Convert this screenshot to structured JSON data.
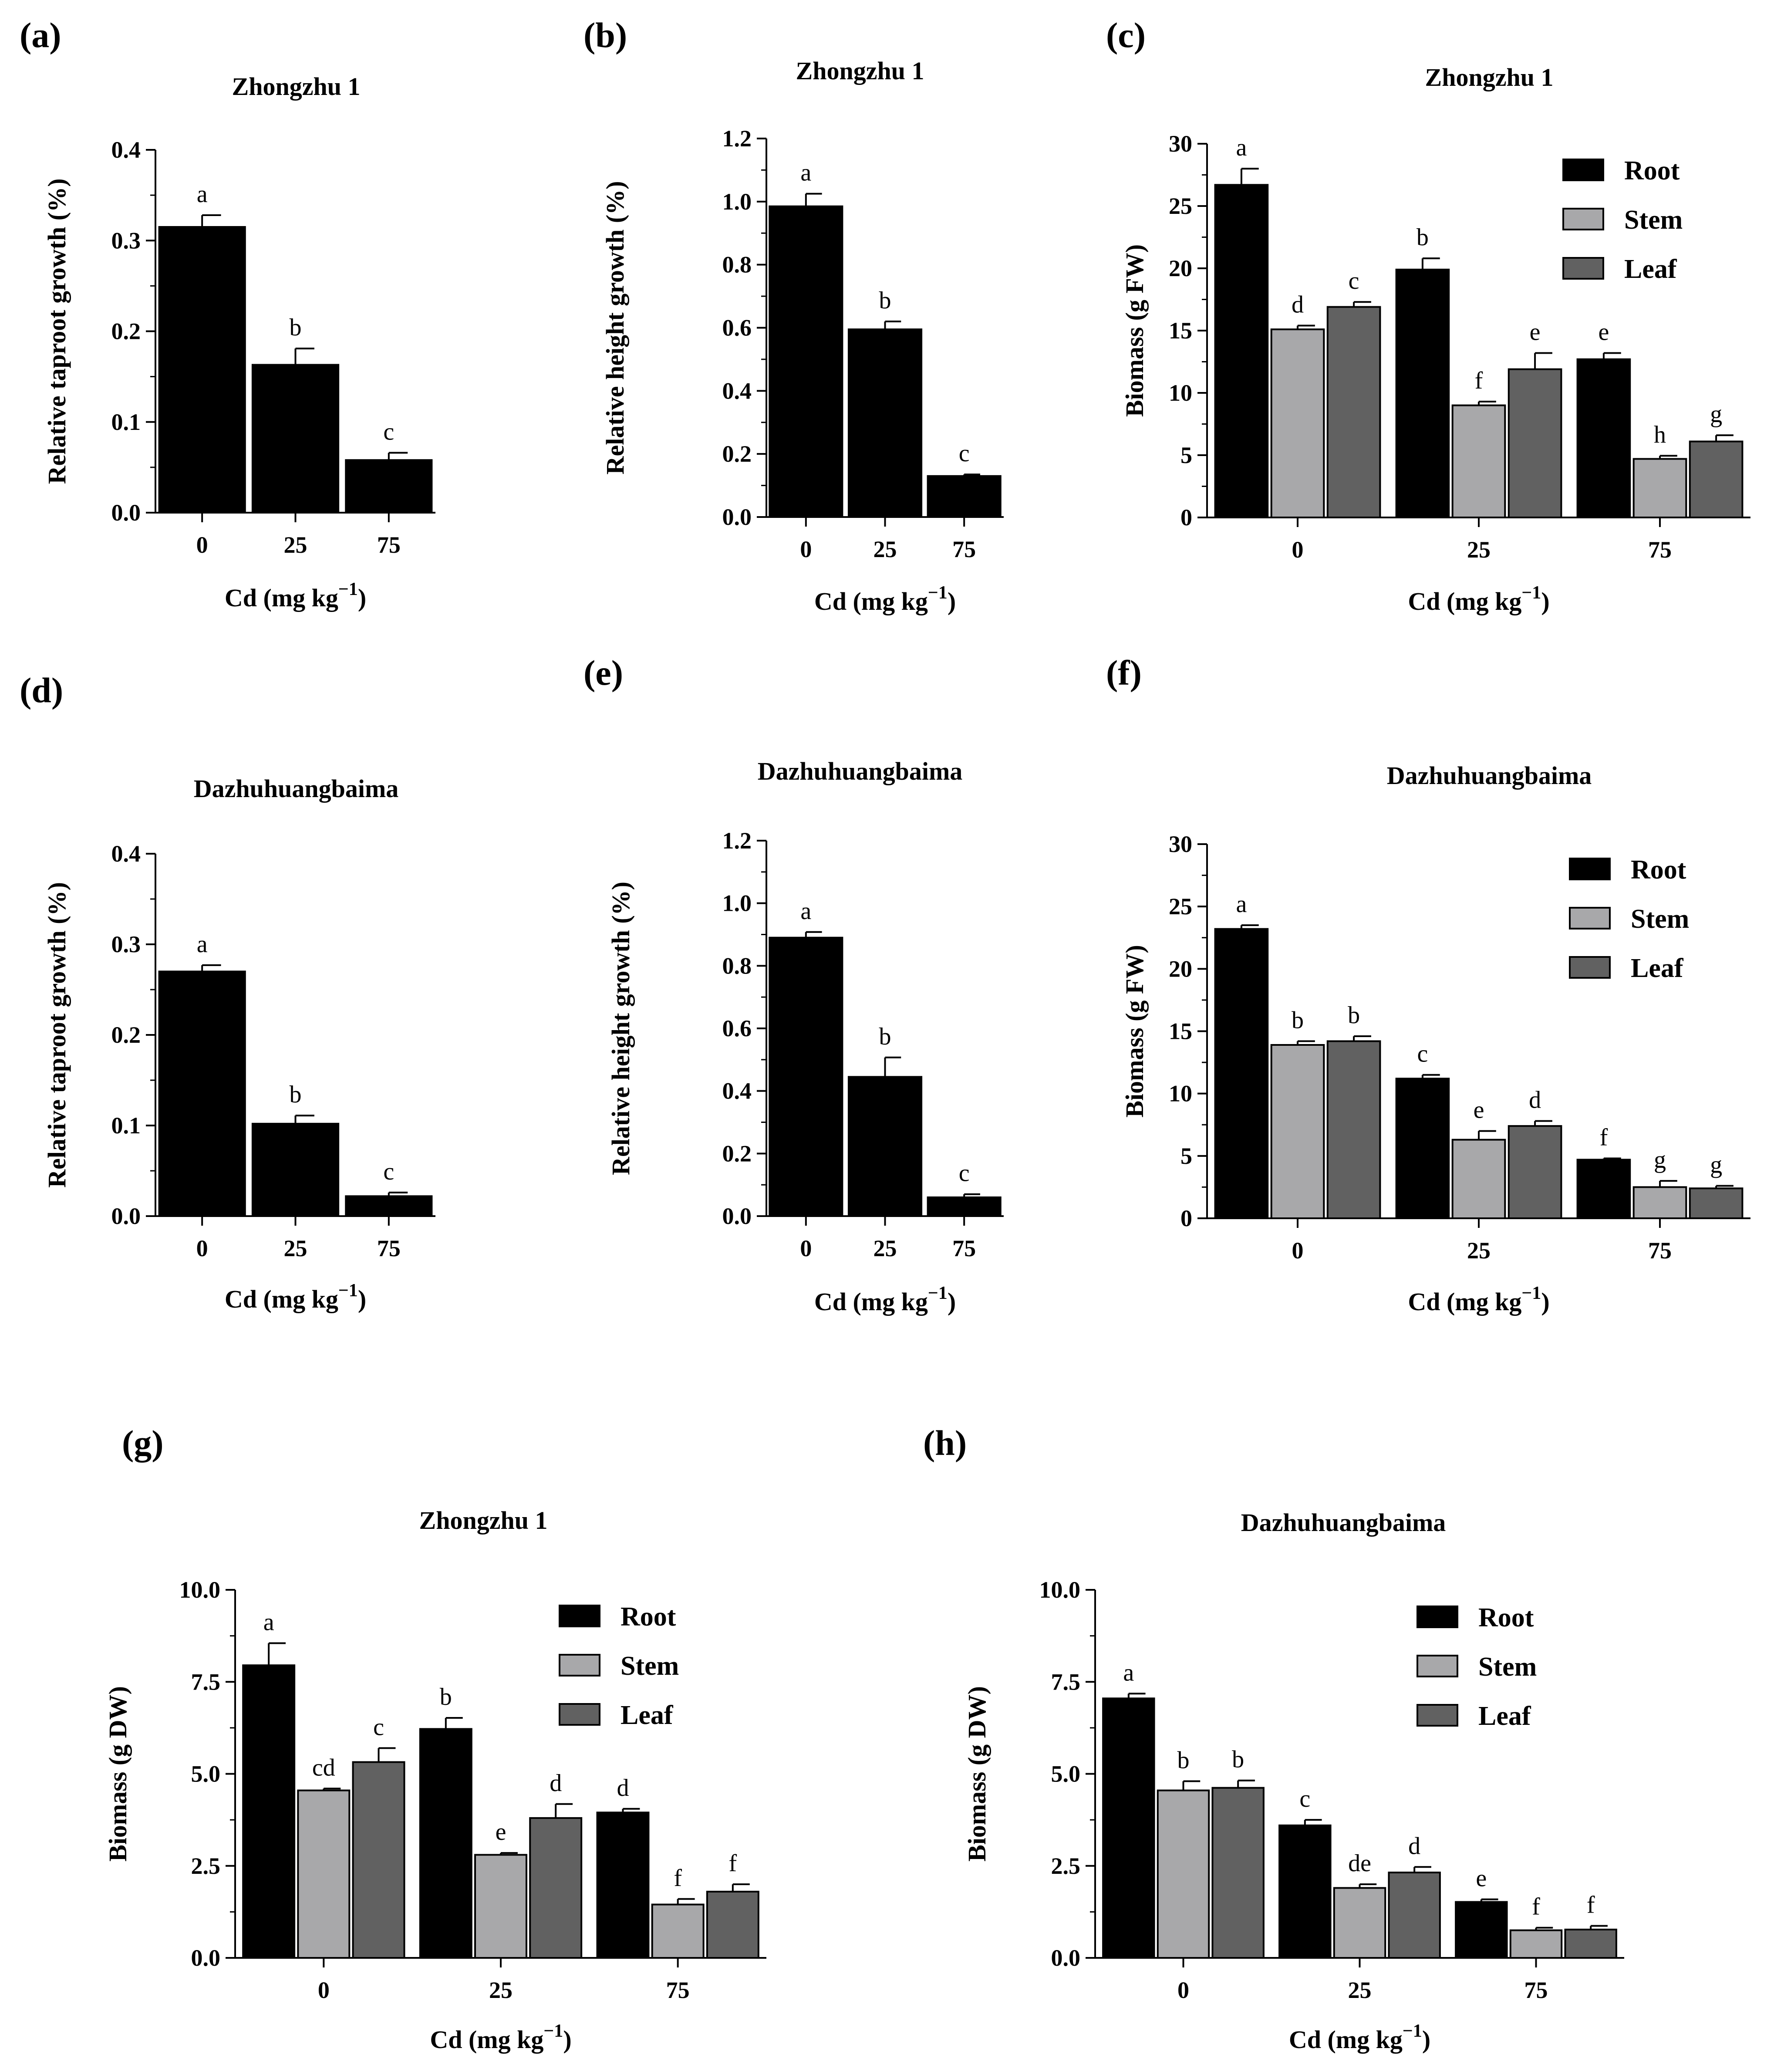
{
  "colors": {
    "root": "#000000",
    "stem": "#a8a8aa",
    "leaf": "#616161",
    "single": "#000000"
  },
  "chart_data": [
    {
      "panel": "(a)",
      "title": "Zhongzhu 1",
      "type": "bar",
      "xlabel": "Cd (mg kg",
      "xlabel_sup": "−1",
      "ylabel": "Relative taproot growth (%)",
      "ylim": [
        0,
        0.4
      ],
      "yticks": [
        "0.0",
        "0.1",
        "0.2",
        "0.3",
        "0.4"
      ],
      "categories": [
        "0",
        "25",
        "75"
      ],
      "series": [
        {
          "values": [
            0.315,
            0.163,
            0.058
          ],
          "errors": [
            0.013,
            0.018,
            0.008
          ],
          "letters": [
            "a",
            "b",
            "c"
          ]
        }
      ]
    },
    {
      "panel": "(b)",
      "title": "Zhongzhu 1",
      "type": "bar",
      "xlabel": "Cd (mg kg",
      "xlabel_sup": "−1",
      "ylabel": "Relative height growth (%)",
      "ylim": [
        0,
        1.2
      ],
      "yticks": [
        "0.0",
        "0.2",
        "0.4",
        "0.6",
        "0.8",
        "1.0",
        "1.2"
      ],
      "categories": [
        "0",
        "25",
        "75"
      ],
      "series": [
        {
          "values": [
            0.985,
            0.595,
            0.13
          ],
          "errors": [
            0.04,
            0.025,
            0.005
          ],
          "letters": [
            "a",
            "b",
            "c"
          ]
        }
      ]
    },
    {
      "panel": "(c)",
      "title": "Zhongzhu 1",
      "type": "bar",
      "xlabel": "Cd (mg kg",
      "xlabel_sup": "−1",
      "ylabel": "Biomass (g FW)",
      "ylim": [
        0,
        30
      ],
      "yticks": [
        "0",
        "5",
        "10",
        "15",
        "20",
        "25",
        "30"
      ],
      "categories": [
        "0",
        "25",
        "75"
      ],
      "series": [
        {
          "name": "Root",
          "values": [
            26.7,
            19.9,
            12.7
          ],
          "errors": [
            1.3,
            0.9,
            0.5
          ],
          "letters": [
            "a",
            "b",
            "e"
          ]
        },
        {
          "name": "Stem",
          "values": [
            15.1,
            9.0,
            4.7
          ],
          "errors": [
            0.3,
            0.3,
            0.25
          ],
          "letters": [
            "d",
            "f",
            "h"
          ]
        },
        {
          "name": "Leaf",
          "values": [
            16.9,
            11.9,
            6.1
          ],
          "errors": [
            0.4,
            1.3,
            0.5
          ],
          "letters": [
            "c",
            "e",
            "g"
          ]
        }
      ]
    },
    {
      "panel": "(d)",
      "title": "Dazhuhuangbaima",
      "type": "bar",
      "xlabel": "Cd (mg kg",
      "xlabel_sup": "−1",
      "ylabel": "Relative taproot growth (%)",
      "ylim": [
        0,
        0.4
      ],
      "yticks": [
        "0.0",
        "0.1",
        "0.2",
        "0.3",
        "0.4"
      ],
      "categories": [
        "0",
        "25",
        "75"
      ],
      "series": [
        {
          "values": [
            0.27,
            0.102,
            0.022
          ],
          "errors": [
            0.007,
            0.009,
            0.004
          ],
          "letters": [
            "a",
            "b",
            "c"
          ]
        }
      ]
    },
    {
      "panel": "(e)",
      "title": "Dazhuhuangbaima",
      "type": "bar",
      "xlabel": "Cd (mg kg",
      "xlabel_sup": "−1",
      "ylabel": "Relative height growth (%)",
      "ylim": [
        0,
        1.2
      ],
      "yticks": [
        "0.0",
        "0.2",
        "0.4",
        "0.6",
        "0.8",
        "1.0",
        "1.2"
      ],
      "categories": [
        "0",
        "25",
        "75"
      ],
      "series": [
        {
          "values": [
            0.89,
            0.445,
            0.06
          ],
          "errors": [
            0.018,
            0.062,
            0.01
          ],
          "letters": [
            "a",
            "b",
            "c"
          ]
        }
      ]
    },
    {
      "panel": "(f)",
      "title": "Dazhuhuangbaima",
      "type": "bar",
      "xlabel": "Cd (mg kg",
      "xlabel_sup": "−1",
      "ylabel": "Biomass (g FW)",
      "ylim": [
        0,
        30
      ],
      "yticks": [
        "0",
        "5",
        "10",
        "15",
        "20",
        "25",
        "30"
      ],
      "categories": [
        "0",
        "25",
        "75"
      ],
      "series": [
        {
          "name": "Root",
          "values": [
            23.2,
            11.2,
            4.7
          ],
          "errors": [
            0.3,
            0.3,
            0.1
          ],
          "letters": [
            "a",
            "c",
            "f"
          ]
        },
        {
          "name": "Stem",
          "values": [
            13.9,
            6.3,
            2.5
          ],
          "errors": [
            0.3,
            0.7,
            0.5
          ],
          "letters": [
            "b",
            "e",
            "g"
          ]
        },
        {
          "name": "Leaf",
          "values": [
            14.2,
            7.4,
            2.4
          ],
          "errors": [
            0.4,
            0.4,
            0.2
          ],
          "letters": [
            "b",
            "d",
            "g"
          ]
        }
      ]
    },
    {
      "panel": "(g)",
      "title": "Zhongzhu 1",
      "type": "bar",
      "xlabel": "Cd (mg kg",
      "xlabel_sup": "−1",
      "ylabel": "Biomass (g DW)",
      "ylim": [
        0,
        10
      ],
      "yticks": [
        "0.0",
        "2.5",
        "5.0",
        "7.5",
        "10.0"
      ],
      "categories": [
        "0",
        "25",
        "75"
      ],
      "series": [
        {
          "name": "Root",
          "values": [
            7.95,
            6.22,
            3.95
          ],
          "errors": [
            0.6,
            0.3,
            0.1
          ],
          "letters": [
            "a",
            "b",
            "d"
          ]
        },
        {
          "name": "Stem",
          "values": [
            4.55,
            2.8,
            1.45
          ],
          "errors": [
            0.05,
            0.05,
            0.15
          ],
          "letters": [
            "cd",
            "e",
            "f"
          ]
        },
        {
          "name": "Leaf",
          "values": [
            5.32,
            3.8,
            1.8
          ],
          "errors": [
            0.38,
            0.38,
            0.2
          ],
          "letters": [
            "c",
            "d",
            "f"
          ]
        }
      ]
    },
    {
      "panel": "(h)",
      "title": "Dazhuhuangbaima",
      "type": "bar",
      "xlabel": "Cd (mg kg",
      "xlabel_sup": "−1",
      "ylabel": "Biomass (g DW)",
      "ylim": [
        0,
        10
      ],
      "yticks": [
        "0.0",
        "2.5",
        "5.0",
        "7.5",
        "10.0"
      ],
      "categories": [
        "0",
        "25",
        "75"
      ],
      "series": [
        {
          "name": "Root",
          "values": [
            7.05,
            3.6,
            1.52
          ],
          "errors": [
            0.13,
            0.15,
            0.07
          ],
          "letters": [
            "a",
            "c",
            "e"
          ]
        },
        {
          "name": "Stem",
          "values": [
            4.55,
            1.9,
            0.75
          ],
          "errors": [
            0.25,
            0.1,
            0.07
          ],
          "letters": [
            "b",
            "de",
            "f"
          ]
        },
        {
          "name": "Leaf",
          "values": [
            4.62,
            2.32,
            0.77
          ],
          "errors": [
            0.2,
            0.15,
            0.1
          ],
          "letters": [
            "b",
            "d",
            "f"
          ]
        }
      ]
    }
  ]
}
